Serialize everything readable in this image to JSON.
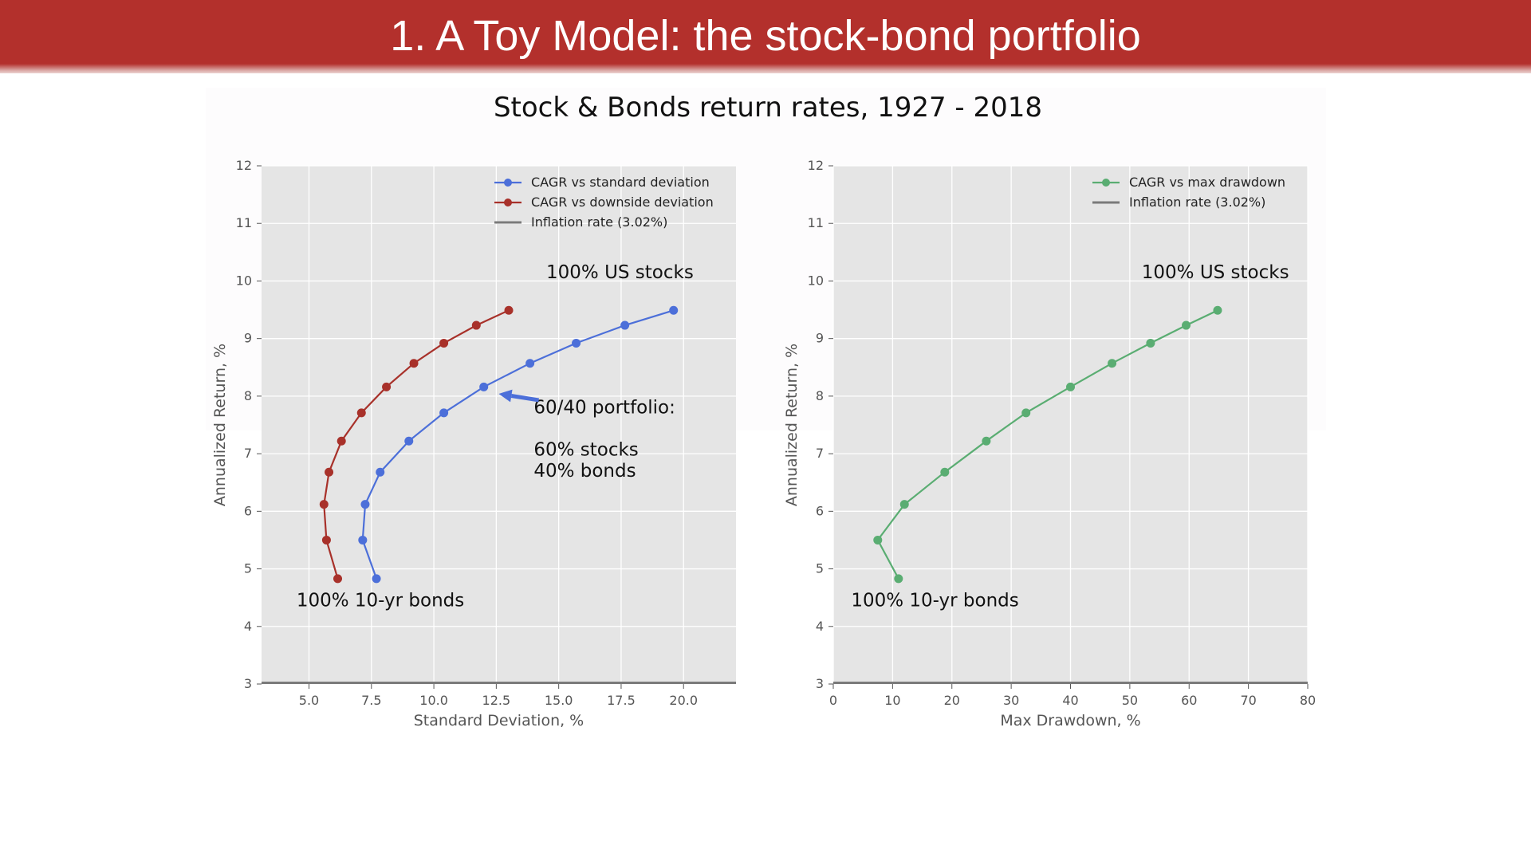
{
  "slide": {
    "title": "1. A Toy Model: the stock-bond portfolio"
  },
  "figure": {
    "suptitle": "Stock & Bonds return rates, 1927 - 2018"
  },
  "colors": {
    "title_bar": "#b3302c",
    "plot_bg": "#e5e5e5",
    "grid": "#ffffff",
    "blue": "#4c6fd9",
    "red": "#a8312a",
    "green": "#5aad72",
    "inflation": "#7a7a7a",
    "text": "#111111",
    "axis_text": "#555555"
  },
  "chart_data": [
    {
      "type": "line",
      "xlabel": "Standard Deviation, %",
      "ylabel": "Annualized Return, %",
      "xlim": [
        3.1,
        22.1
      ],
      "ylim": [
        3,
        12
      ],
      "xticks": [
        5.0,
        7.5,
        10.0,
        12.5,
        15.0,
        17.5,
        20.0
      ],
      "xtick_labels": [
        "5.0",
        "7.5",
        "10.0",
        "12.5",
        "15.0",
        "17.5",
        "20.0"
      ],
      "yticks": [
        3,
        4,
        5,
        6,
        7,
        8,
        9,
        10,
        11,
        12
      ],
      "ytick_labels": [
        "3",
        "4",
        "5",
        "6",
        "7",
        "8",
        "9",
        "10",
        "11",
        "12"
      ],
      "grid": true,
      "legend_position": "top-right",
      "series": [
        {
          "name": "CAGR vs standard deviation",
          "color_key": "blue",
          "marker": true,
          "x": [
            7.7,
            7.15,
            7.25,
            7.85,
            9.0,
            10.4,
            12.0,
            13.85,
            15.7,
            17.65,
            19.6
          ],
          "y": [
            4.83,
            5.5,
            6.12,
            6.68,
            7.22,
            7.71,
            8.16,
            8.57,
            8.92,
            9.23,
            9.49
          ]
        },
        {
          "name": "CAGR vs downside deviation",
          "color_key": "red",
          "marker": true,
          "x": [
            6.15,
            5.7,
            5.6,
            5.8,
            6.3,
            7.1,
            8.1,
            9.2,
            10.4,
            11.7,
            13.0
          ],
          "y": [
            4.83,
            5.5,
            6.12,
            6.68,
            7.22,
            7.71,
            8.16,
            8.57,
            8.92,
            9.23,
            9.49
          ]
        },
        {
          "name": "Inflation rate (3.02%)",
          "color_key": "inflation",
          "marker": false,
          "x": [
            3.1,
            22.1
          ],
          "y": [
            3.02,
            3.02
          ]
        }
      ],
      "annotations": [
        {
          "text": "100% US stocks",
          "x": 14.5,
          "y": 10.05
        },
        {
          "text": "60/40 portfolio:",
          "x": 14.0,
          "y": 7.7
        },
        {
          "text": "60% stocks",
          "x": 14.0,
          "y": 6.97
        },
        {
          "text": "40% bonds",
          "x": 14.0,
          "y": 6.6
        },
        {
          "text": "100% 10-yr bonds",
          "x": 4.5,
          "y": 4.35
        }
      ],
      "arrow": {
        "from": [
          14.2,
          7.93
        ],
        "to": [
          12.6,
          8.04
        ]
      }
    },
    {
      "type": "line",
      "xlabel": "Max Drawdown, %",
      "ylabel": "Annualized Return, %",
      "xlim": [
        0,
        80
      ],
      "ylim": [
        3,
        12
      ],
      "xticks": [
        0,
        10,
        20,
        30,
        40,
        50,
        60,
        70,
        80
      ],
      "xtick_labels": [
        "0",
        "10",
        "20",
        "30",
        "40",
        "50",
        "60",
        "70",
        "80"
      ],
      "yticks": [
        3,
        4,
        5,
        6,
        7,
        8,
        9,
        10,
        11,
        12
      ],
      "ytick_labels": [
        "3",
        "4",
        "5",
        "6",
        "7",
        "8",
        "9",
        "10",
        "11",
        "12"
      ],
      "grid": true,
      "legend_position": "top-right",
      "series": [
        {
          "name": "CAGR vs max drawdown",
          "color_key": "green",
          "marker": true,
          "x": [
            11.0,
            7.5,
            12.0,
            18.8,
            25.8,
            32.5,
            40.0,
            47.0,
            53.5,
            59.5,
            64.8
          ],
          "y": [
            4.83,
            5.5,
            6.12,
            6.68,
            7.22,
            7.71,
            8.16,
            8.57,
            8.92,
            9.23,
            9.49
          ]
        },
        {
          "name": "Inflation rate (3.02%)",
          "color_key": "inflation",
          "marker": false,
          "x": [
            0,
            80
          ],
          "y": [
            3.02,
            3.02
          ]
        }
      ],
      "annotations": [
        {
          "text": "100% US stocks",
          "x": 52.0,
          "y": 10.05
        },
        {
          "text": "100% 10-yr bonds",
          "x": 3.0,
          "y": 4.35
        }
      ]
    }
  ]
}
